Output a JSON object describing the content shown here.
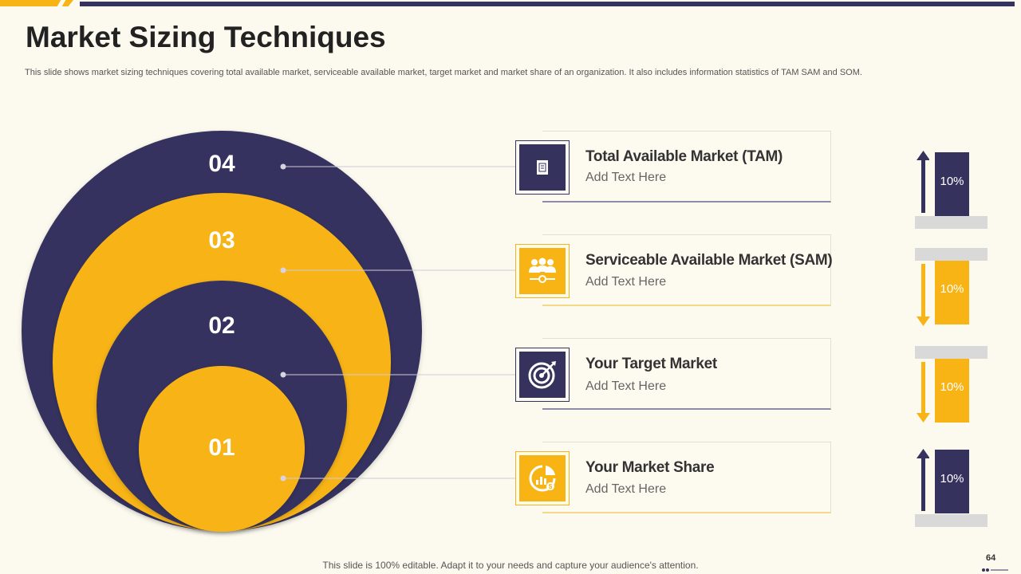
{
  "header": {
    "title": "Market Sizing Techniques",
    "subtitle": "This slide shows market sizing techniques covering total available market, serviceable available market, target market and market share of an organization. It also includes information statistics of TAM  SAM  and SOM."
  },
  "circles": [
    {
      "number": "04",
      "color": "#35325e"
    },
    {
      "number": "03",
      "color": "#f8b414"
    },
    {
      "number": "02",
      "color": "#35325e"
    },
    {
      "number": "01",
      "color": "#f8b414"
    }
  ],
  "items": [
    {
      "title": "Total Available Market (TAM)",
      "text": "Add Text Here",
      "icon": "document-icon",
      "percent": "10%",
      "arrow": "up"
    },
    {
      "title": "Serviceable Available Market (SAM)",
      "text": "Add Text Here",
      "icon": "team-icon",
      "percent": "10%",
      "arrow": "down"
    },
    {
      "title": "Your Target Market",
      "text": "Add Text Here",
      "icon": "target-icon",
      "percent": "10%",
      "arrow": "down"
    },
    {
      "title": "Your Market Share",
      "text": "Add Text Here",
      "icon": "market-share-icon",
      "percent": "10%",
      "arrow": "up"
    }
  ],
  "colors": {
    "navy": "#35325e",
    "gold": "#f8b414",
    "background": "#fcf9ee"
  },
  "footer": {
    "note": "This slide is 100% editable. Adapt it to your needs and capture your audience's attention.",
    "page": "64"
  }
}
